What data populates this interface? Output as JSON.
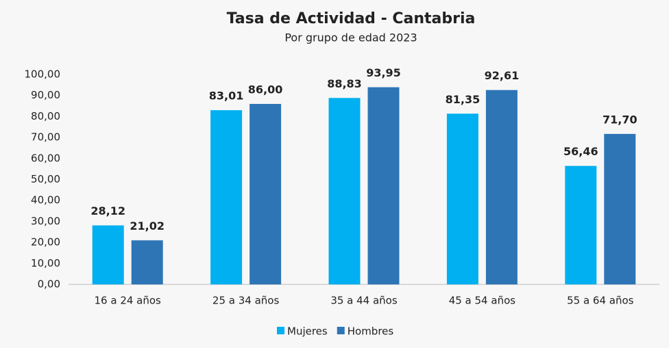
{
  "chart_data": {
    "type": "bar",
    "title": "Tasa de Actividad - Cantabria",
    "subtitle": "Por grupo de edad 2023",
    "categories": [
      "16 a 24 años",
      "25 a 34 años",
      "35 a 44 años",
      "45 a 54 años",
      "55 a 64 años"
    ],
    "series": [
      {
        "name": "Mujeres",
        "color": "#00b0f0",
        "values": [
          28.12,
          83.01,
          88.83,
          81.35,
          56.46
        ],
        "value_labels": [
          "28,12",
          "83,01",
          "88,83",
          "81,35",
          "56,46"
        ]
      },
      {
        "name": "Hombres",
        "color": "#2e75b6",
        "values": [
          21.02,
          86.0,
          93.95,
          92.61,
          71.7
        ],
        "value_labels": [
          "21,02",
          "86,00",
          "93,95",
          "92,61",
          "71,70"
        ]
      }
    ],
    "ylim": [
      0,
      100
    ],
    "yticks": [
      {
        "value": 0,
        "label": "0,00"
      },
      {
        "value": 10,
        "label": "10,00"
      },
      {
        "value": 20,
        "label": "20,00"
      },
      {
        "value": 30,
        "label": "30,00"
      },
      {
        "value": 40,
        "label": "40,00"
      },
      {
        "value": 50,
        "label": "50,00"
      },
      {
        "value": 60,
        "label": "60,00"
      },
      {
        "value": 70,
        "label": "70,00"
      },
      {
        "value": 80,
        "label": "80,00"
      },
      {
        "value": 90,
        "label": "90,00"
      },
      {
        "value": 100,
        "label": "100,00"
      }
    ],
    "grid": false,
    "legend": "bottom"
  }
}
